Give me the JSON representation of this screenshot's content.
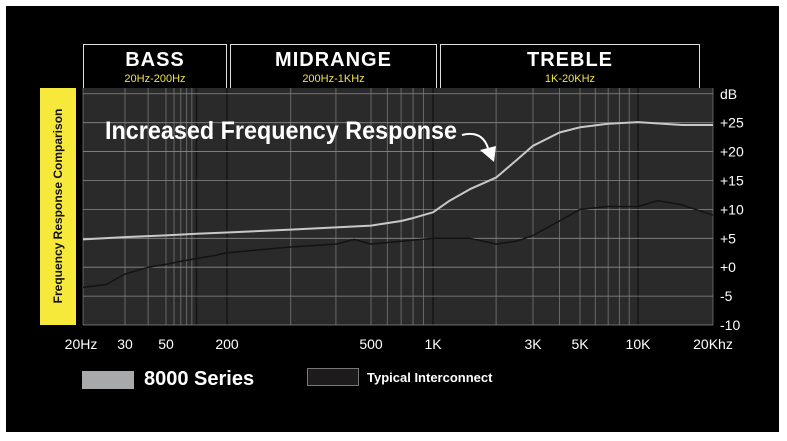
{
  "bands": [
    {
      "name": "BASS",
      "range": "20Hz-200Hz"
    },
    {
      "name": "MIDRANGE",
      "range": "200Hz-1KHz"
    },
    {
      "name": "TREBLE",
      "range": "1K-20KHz"
    }
  ],
  "colors": {
    "background": "#000000",
    "plot": "#2b2a2b",
    "grid": "#8a8a8a",
    "series_8000": "#c8c8c8",
    "series_typical": "#141214",
    "label_box": "#f7e93a",
    "range_text": "#f2e24a"
  },
  "chart_data": {
    "type": "line",
    "title": "",
    "ylabel": "Frequency Response Comparison",
    "y_unit": "dB",
    "xscale": "log",
    "xlim": [
      20,
      20000
    ],
    "ylim": [
      -10,
      31
    ],
    "grid": true,
    "legend_position": "bottom-left",
    "annotation": "Increased Frequency Response",
    "x_ticks": [
      {
        "value": 20,
        "label": "20Hz"
      },
      {
        "value": 30,
        "label": "30"
      },
      {
        "value": 50,
        "label": "50"
      },
      {
        "value": 200,
        "label": "200"
      },
      {
        "value": 500,
        "label": "500"
      },
      {
        "value": 1000,
        "label": "1K"
      },
      {
        "value": 3000,
        "label": "3K"
      },
      {
        "value": 5000,
        "label": "5K"
      },
      {
        "value": 10000,
        "label": "10K"
      },
      {
        "value": 20000,
        "label": "20Khz"
      }
    ],
    "y_ticks": [
      {
        "value": 25,
        "label": "+25"
      },
      {
        "value": 20,
        "label": "+20"
      },
      {
        "value": 15,
        "label": "+15"
      },
      {
        "value": 10,
        "label": "+10"
      },
      {
        "value": 5,
        "label": "+5"
      },
      {
        "value": 0,
        "label": "+0"
      },
      {
        "value": -5,
        "label": "-5"
      },
      {
        "value": -10,
        "label": "-10"
      }
    ],
    "series": [
      {
        "name": "8000 Series",
        "x": [
          20,
          30,
          50,
          100,
          200,
          300,
          500,
          700,
          800,
          1000,
          1200,
          1500,
          2000,
          2500,
          3000,
          4000,
          5000,
          7000,
          10000,
          15000,
          20000
        ],
        "y": [
          4.8,
          5.2,
          5.5,
          5.8,
          6,
          6.5,
          7.2,
          8,
          8.5,
          9.5,
          11.5,
          13.5,
          15.5,
          18.5,
          21,
          23.3,
          24.2,
          24.8,
          25.1,
          24.6,
          24.6
        ]
      },
      {
        "name": "Typical Interconnect",
        "x": [
          20,
          25,
          30,
          40,
          50,
          70,
          100,
          150,
          200,
          300,
          400,
          450,
          500,
          700,
          1000,
          1500,
          2000,
          2500,
          3000,
          4000,
          5000,
          7000,
          10000,
          12000,
          15000,
          20000
        ],
        "y": [
          -3.5,
          -3,
          -1.2,
          0,
          0.5,
          1,
          1.5,
          2,
          2.5,
          3.5,
          4,
          4.8,
          4,
          4.5,
          5,
          5,
          4,
          4.5,
          5.5,
          8,
          10,
          10.5,
          10.5,
          11.5,
          10.8,
          9
        ]
      }
    ]
  }
}
